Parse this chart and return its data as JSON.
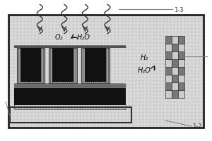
{
  "label_13": "1-3",
  "label_12": "1-2",
  "label_o2": "O₂",
  "label_h2o_left": "H₂O",
  "label_h2": "H₂",
  "label_h2o_right": "H₂O",
  "squiggle_color": "#333333",
  "bg_stipple": "#c8c8c8",
  "outer_bg": "#bbbbbb",
  "fin_stripe": "#888888",
  "fin_black": "#111111",
  "base_black": "#111111"
}
